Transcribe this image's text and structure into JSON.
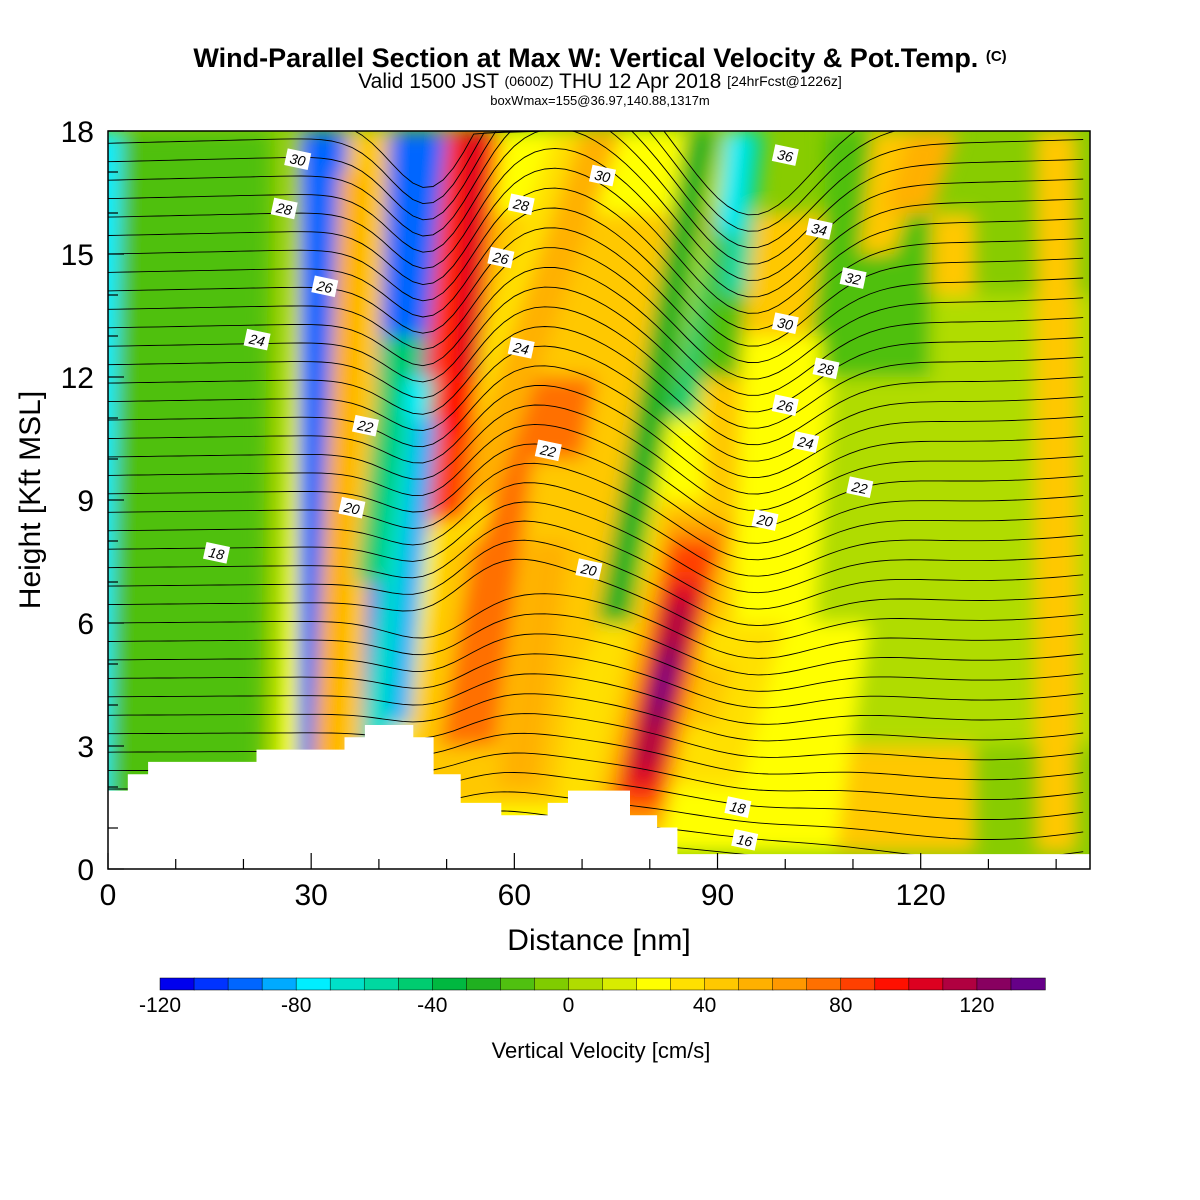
{
  "title": {
    "main": "Wind-Parallel Section at Max W: Vertical Velocity & Pot.Temp.",
    "mark": "(C)",
    "valid": "Valid 1500 JST",
    "zulu": "(0600Z)",
    "date": "THU 12 Apr 2018",
    "fcst": "[24hrFcst@1226z]",
    "box": "boxWmax=155@36.97,140.88,1317m"
  },
  "chart_data": {
    "type": "heatmap",
    "xlabel": "Distance [nm]",
    "ylabel": "Height [Kft MSL]",
    "xlim": [
      0,
      145
    ],
    "ylim": [
      0,
      18
    ],
    "x_ticks": [
      "0",
      "30",
      "60",
      "90",
      "120"
    ],
    "y_ticks": [
      "0",
      "3",
      "6",
      "9",
      "12",
      "15",
      "18"
    ],
    "colorbar": {
      "label": "Vertical Velocity [cm/s]",
      "ticks": [
        "-120",
        "-80",
        "-40",
        "0",
        "40",
        "80",
        "120"
      ],
      "range": [
        -120,
        140
      ],
      "step": 10,
      "colors": [
        "#0000ee",
        "#0033ff",
        "#0066ff",
        "#00aaff",
        "#00eeff",
        "#00e0c8",
        "#00d8a0",
        "#00cc70",
        "#00b840",
        "#20b020",
        "#50c010",
        "#80cc00",
        "#b0dc00",
        "#d8ec00",
        "#ffff00",
        "#ffe000",
        "#ffc800",
        "#ffb000",
        "#ff9800",
        "#ff7000",
        "#ff4000",
        "#ff1000",
        "#dd0020",
        "#b00040",
        "#880060",
        "#660088"
      ]
    },
    "theta_labels": [
      {
        "text": "30",
        "x": 28,
        "y": 17.3
      },
      {
        "text": "28",
        "x": 26,
        "y": 16.1
      },
      {
        "text": "26",
        "x": 32,
        "y": 14.2
      },
      {
        "text": "24",
        "x": 22,
        "y": 12.9
      },
      {
        "text": "22",
        "x": 38,
        "y": 10.8
      },
      {
        "text": "20",
        "x": 36,
        "y": 8.8
      },
      {
        "text": "18",
        "x": 16,
        "y": 7.7
      },
      {
        "text": "30",
        "x": 73,
        "y": 16.9
      },
      {
        "text": "28",
        "x": 61,
        "y": 16.2
      },
      {
        "text": "26",
        "x": 58,
        "y": 14.9
      },
      {
        "text": "24",
        "x": 61,
        "y": 12.7
      },
      {
        "text": "22",
        "x": 65,
        "y": 10.2
      },
      {
        "text": "20",
        "x": 71,
        "y": 7.3
      },
      {
        "text": "36",
        "x": 100,
        "y": 17.4
      },
      {
        "text": "34",
        "x": 105,
        "y": 15.6
      },
      {
        "text": "32",
        "x": 110,
        "y": 14.4
      },
      {
        "text": "30",
        "x": 100,
        "y": 13.3
      },
      {
        "text": "28",
        "x": 106,
        "y": 12.2
      },
      {
        "text": "26",
        "x": 100,
        "y": 11.3
      },
      {
        "text": "24",
        "x": 103,
        "y": 10.4
      },
      {
        "text": "22",
        "x": 111,
        "y": 9.3
      },
      {
        "text": "20",
        "x": 97,
        "y": 8.5
      },
      {
        "text": "18",
        "x": 93,
        "y": 1.5
      },
      {
        "text": "16",
        "x": 94,
        "y": 0.7
      }
    ],
    "terrain": [
      [
        0,
        1.9
      ],
      [
        3,
        1.9
      ],
      [
        3,
        2.3
      ],
      [
        6,
        2.3
      ],
      [
        6,
        2.6
      ],
      [
        22,
        2.6
      ],
      [
        22,
        2.9
      ],
      [
        35,
        2.9
      ],
      [
        35,
        3.2
      ],
      [
        38,
        3.2
      ],
      [
        38,
        3.5
      ],
      [
        45,
        3.5
      ],
      [
        45,
        3.2
      ],
      [
        48,
        3.2
      ],
      [
        48,
        2.3
      ],
      [
        52,
        2.3
      ],
      [
        52,
        1.6
      ],
      [
        58,
        1.6
      ],
      [
        58,
        1.3
      ],
      [
        65,
        1.3
      ],
      [
        65,
        1.6
      ],
      [
        68,
        1.6
      ],
      [
        68,
        1.9
      ],
      [
        77,
        1.9
      ],
      [
        77,
        1.3
      ],
      [
        81,
        1.3
      ],
      [
        81,
        1.0
      ],
      [
        84,
        1.0
      ],
      [
        84,
        0.35
      ],
      [
        145,
        0.35
      ]
    ]
  }
}
